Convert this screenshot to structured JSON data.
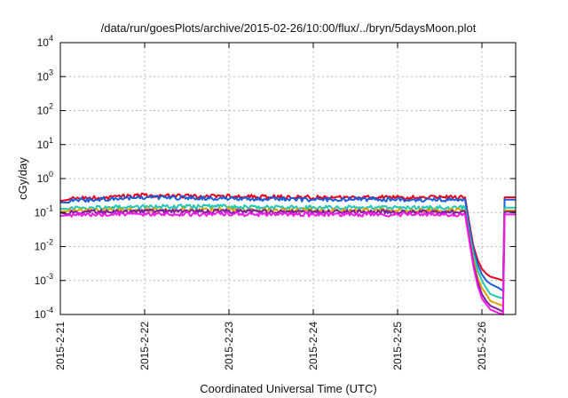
{
  "chart_data": {
    "type": "line",
    "title": "/data/run/goesPlots/archive/2015-02-26/10:00/flux/../bryn/5daysMoon.plot",
    "xlabel": "Coordinated Universal Time (UTC)",
    "ylabel": "cGy/day",
    "y_scale": "log",
    "ylim": [
      0.0001,
      10000
    ],
    "xlim": [
      "2015-02-21 00:00",
      "2015-02-26 10:00"
    ],
    "grid": true,
    "legend": "none",
    "x_ticks": [
      "2015-2-21",
      "2015-2-22",
      "2015-2-23",
      "2015-2-24",
      "2015-2-25",
      "2015-2-26"
    ],
    "y_ticks": [
      {
        "base": "10",
        "exp": "-4"
      },
      {
        "base": "10",
        "exp": "-3"
      },
      {
        "base": "10",
        "exp": "-2"
      },
      {
        "base": "10",
        "exp": "-1"
      },
      {
        "base": "10",
        "exp": "0"
      },
      {
        "base": "10",
        "exp": "1"
      },
      {
        "base": "10",
        "exp": "2"
      },
      {
        "base": "10",
        "exp": "3"
      },
      {
        "base": "10",
        "exp": "4"
      }
    ],
    "series": [
      {
        "color": "#e8001c",
        "values": [
          [
            0,
            0.22
          ],
          [
            0.1,
            0.25
          ],
          [
            0.5,
            0.28
          ],
          [
            1.0,
            0.32
          ],
          [
            1.5,
            0.3
          ],
          [
            2.0,
            0.3
          ],
          [
            2.5,
            0.29
          ],
          [
            3.0,
            0.28
          ],
          [
            3.5,
            0.28
          ],
          [
            4.0,
            0.28
          ],
          [
            4.5,
            0.28
          ],
          [
            4.8,
            0.28
          ],
          [
            4.85,
            0.05
          ],
          [
            4.9,
            0.01
          ],
          [
            4.95,
            0.004
          ],
          [
            5.0,
            0.0022
          ],
          [
            5.05,
            0.0016
          ],
          [
            5.1,
            0.0013
          ],
          [
            5.2,
            0.0011
          ],
          [
            5.25,
            0.001
          ],
          [
            5.27,
            0.28
          ],
          [
            5.4,
            0.28
          ]
        ]
      },
      {
        "color": "#1a5fd8",
        "values": [
          [
            0,
            0.2
          ],
          [
            0.1,
            0.22
          ],
          [
            0.5,
            0.25
          ],
          [
            1.0,
            0.28
          ],
          [
            1.5,
            0.27
          ],
          [
            2.0,
            0.26
          ],
          [
            2.5,
            0.25
          ],
          [
            3.0,
            0.24
          ],
          [
            3.5,
            0.25
          ],
          [
            4.0,
            0.24
          ],
          [
            4.5,
            0.24
          ],
          [
            4.8,
            0.24
          ],
          [
            4.85,
            0.04
          ],
          [
            4.9,
            0.008
          ],
          [
            4.95,
            0.003
          ],
          [
            5.0,
            0.0015
          ],
          [
            5.05,
            0.001
          ],
          [
            5.1,
            0.0008
          ],
          [
            5.2,
            0.0006
          ],
          [
            5.25,
            0.0005
          ],
          [
            5.27,
            0.24
          ],
          [
            5.4,
            0.24
          ]
        ]
      },
      {
        "color": "#1ec8b4",
        "values": [
          [
            0,
            0.13
          ],
          [
            0.1,
            0.14
          ],
          [
            0.5,
            0.14
          ],
          [
            1.0,
            0.15
          ],
          [
            1.5,
            0.15
          ],
          [
            2.0,
            0.15
          ],
          [
            2.5,
            0.14
          ],
          [
            3.0,
            0.14
          ],
          [
            3.5,
            0.14
          ],
          [
            4.0,
            0.14
          ],
          [
            4.5,
            0.14
          ],
          [
            4.8,
            0.14
          ],
          [
            4.85,
            0.025
          ],
          [
            4.9,
            0.006
          ],
          [
            4.95,
            0.002
          ],
          [
            5.0,
            0.001
          ],
          [
            5.05,
            0.0006
          ],
          [
            5.1,
            0.0004
          ],
          [
            5.2,
            0.00032
          ],
          [
            5.25,
            0.0003
          ],
          [
            5.27,
            0.14
          ],
          [
            5.4,
            0.14
          ]
        ]
      },
      {
        "color": "#e0a000",
        "values": [
          [
            0,
            0.11
          ],
          [
            0.1,
            0.11
          ],
          [
            0.5,
            0.12
          ],
          [
            1.0,
            0.12
          ],
          [
            1.5,
            0.12
          ],
          [
            2.0,
            0.12
          ],
          [
            2.5,
            0.115
          ],
          [
            3.0,
            0.115
          ],
          [
            3.5,
            0.115
          ],
          [
            4.0,
            0.115
          ],
          [
            4.5,
            0.115
          ],
          [
            4.8,
            0.115
          ],
          [
            4.85,
            0.02
          ],
          [
            4.9,
            0.004
          ],
          [
            4.95,
            0.0012
          ],
          [
            5.0,
            0.0006
          ],
          [
            5.05,
            0.0004
          ],
          [
            5.1,
            0.00025
          ],
          [
            5.2,
            0.0002
          ],
          [
            5.25,
            0.00018
          ],
          [
            5.27,
            0.115
          ],
          [
            5.4,
            0.115
          ]
        ]
      },
      {
        "color": "#7a1fa0",
        "values": [
          [
            0,
            0.1
          ],
          [
            0.1,
            0.1
          ],
          [
            0.5,
            0.105
          ],
          [
            1.0,
            0.11
          ],
          [
            1.5,
            0.11
          ],
          [
            2.0,
            0.11
          ],
          [
            2.5,
            0.105
          ],
          [
            3.0,
            0.105
          ],
          [
            3.5,
            0.105
          ],
          [
            4.0,
            0.105
          ],
          [
            4.5,
            0.105
          ],
          [
            4.8,
            0.105
          ],
          [
            4.85,
            0.018
          ],
          [
            4.9,
            0.003
          ],
          [
            4.95,
            0.0009
          ],
          [
            5.0,
            0.0004
          ],
          [
            5.05,
            0.00025
          ],
          [
            5.1,
            0.00018
          ],
          [
            5.2,
            0.00014
          ],
          [
            5.25,
            0.00012
          ],
          [
            5.27,
            0.105
          ],
          [
            5.4,
            0.105
          ]
        ]
      },
      {
        "color": "#f218e8",
        "values": [
          [
            0,
            0.08
          ],
          [
            0.1,
            0.085
          ],
          [
            0.5,
            0.088
          ],
          [
            1.0,
            0.09
          ],
          [
            1.5,
            0.09
          ],
          [
            2.0,
            0.09
          ],
          [
            2.5,
            0.088
          ],
          [
            3.0,
            0.088
          ],
          [
            3.5,
            0.088
          ],
          [
            4.0,
            0.088
          ],
          [
            4.5,
            0.088
          ],
          [
            4.8,
            0.088
          ],
          [
            4.85,
            0.015
          ],
          [
            4.9,
            0.0025
          ],
          [
            4.95,
            0.0007
          ],
          [
            5.0,
            0.0003
          ],
          [
            5.05,
            0.0002
          ],
          [
            5.1,
            0.00014
          ],
          [
            5.2,
            0.00011
          ],
          [
            5.25,
            0.0001
          ],
          [
            5.27,
            0.088
          ],
          [
            5.4,
            0.088
          ]
        ]
      }
    ]
  }
}
